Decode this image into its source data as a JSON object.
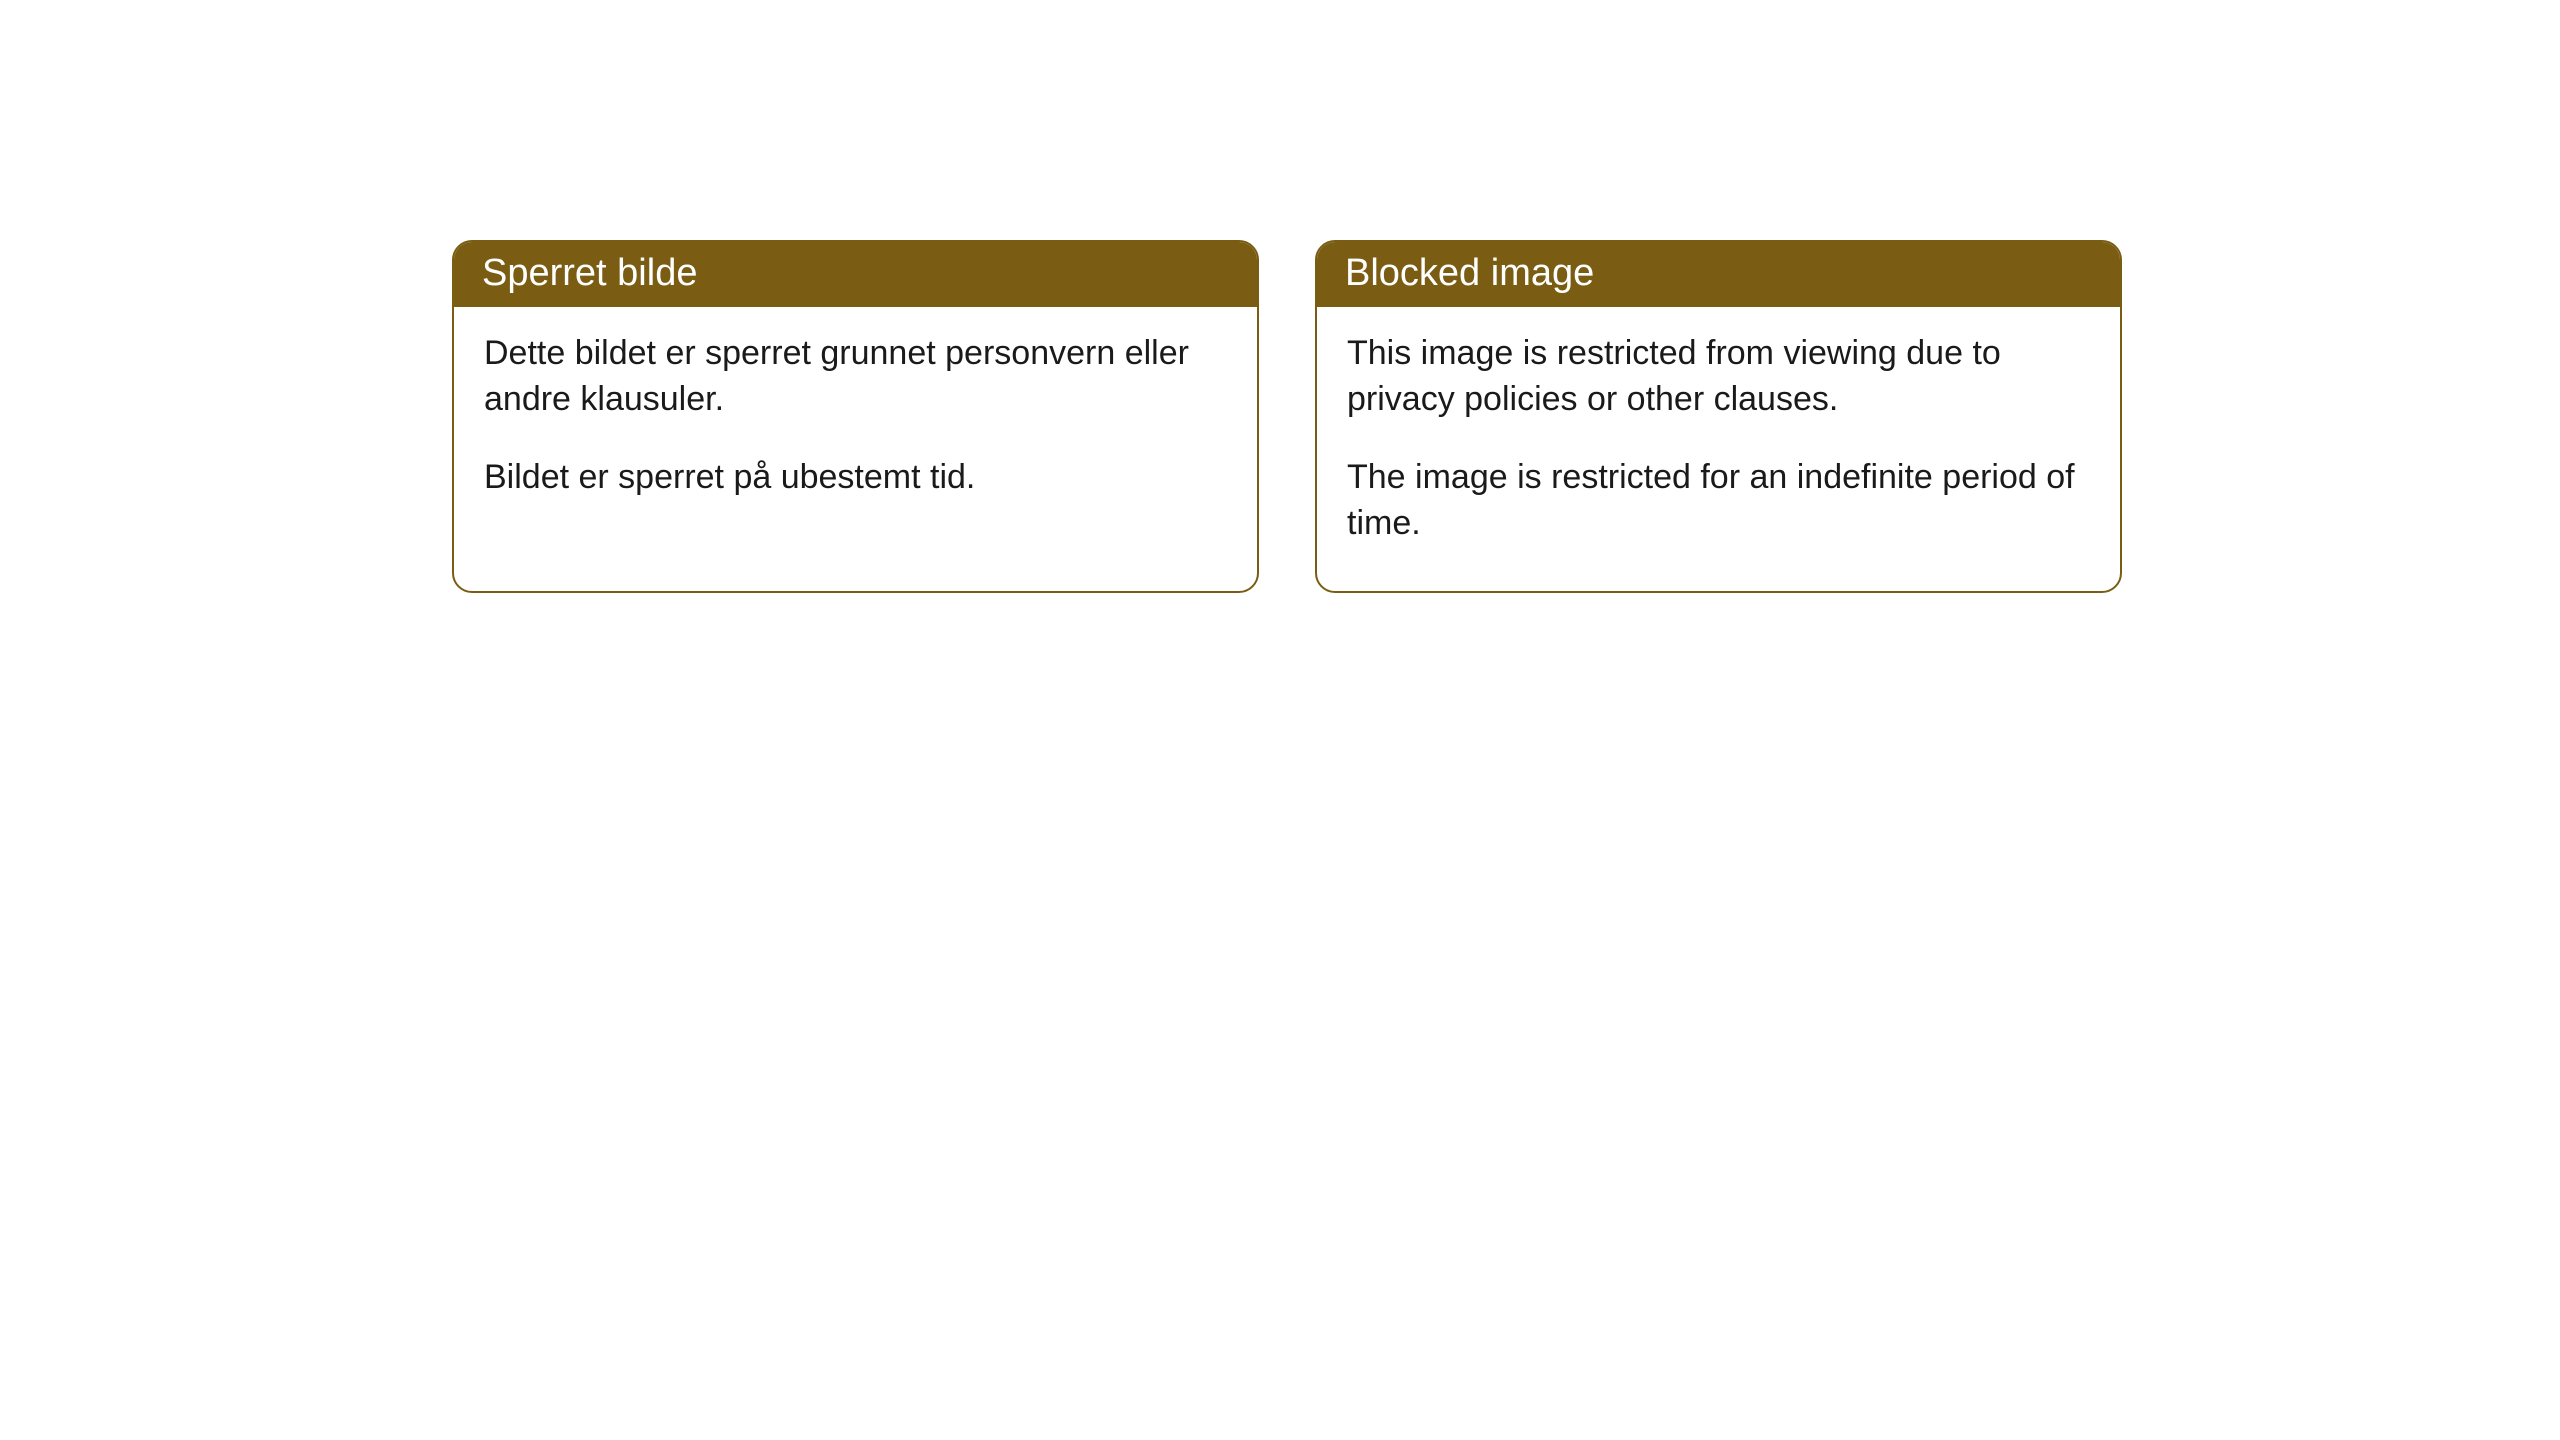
{
  "cards": [
    {
      "title": "Sperret bilde",
      "para1": "Dette bildet er sperret grunnet personvern eller andre klausuler.",
      "para2": "Bildet er sperret på ubestemt tid."
    },
    {
      "title": "Blocked image",
      "para1": "This image is restricted from viewing due to privacy policies or other clauses.",
      "para2": "The image is restricted for an indefinite period of time."
    }
  ],
  "style": {
    "header_bg": "#7a5d13",
    "header_text_color": "#ffffff",
    "border_color": "#7a5d13",
    "body_text_color": "#1a1a1a",
    "background_color": "#ffffff",
    "border_radius": 20,
    "title_fontsize": 38,
    "body_fontsize": 34
  }
}
